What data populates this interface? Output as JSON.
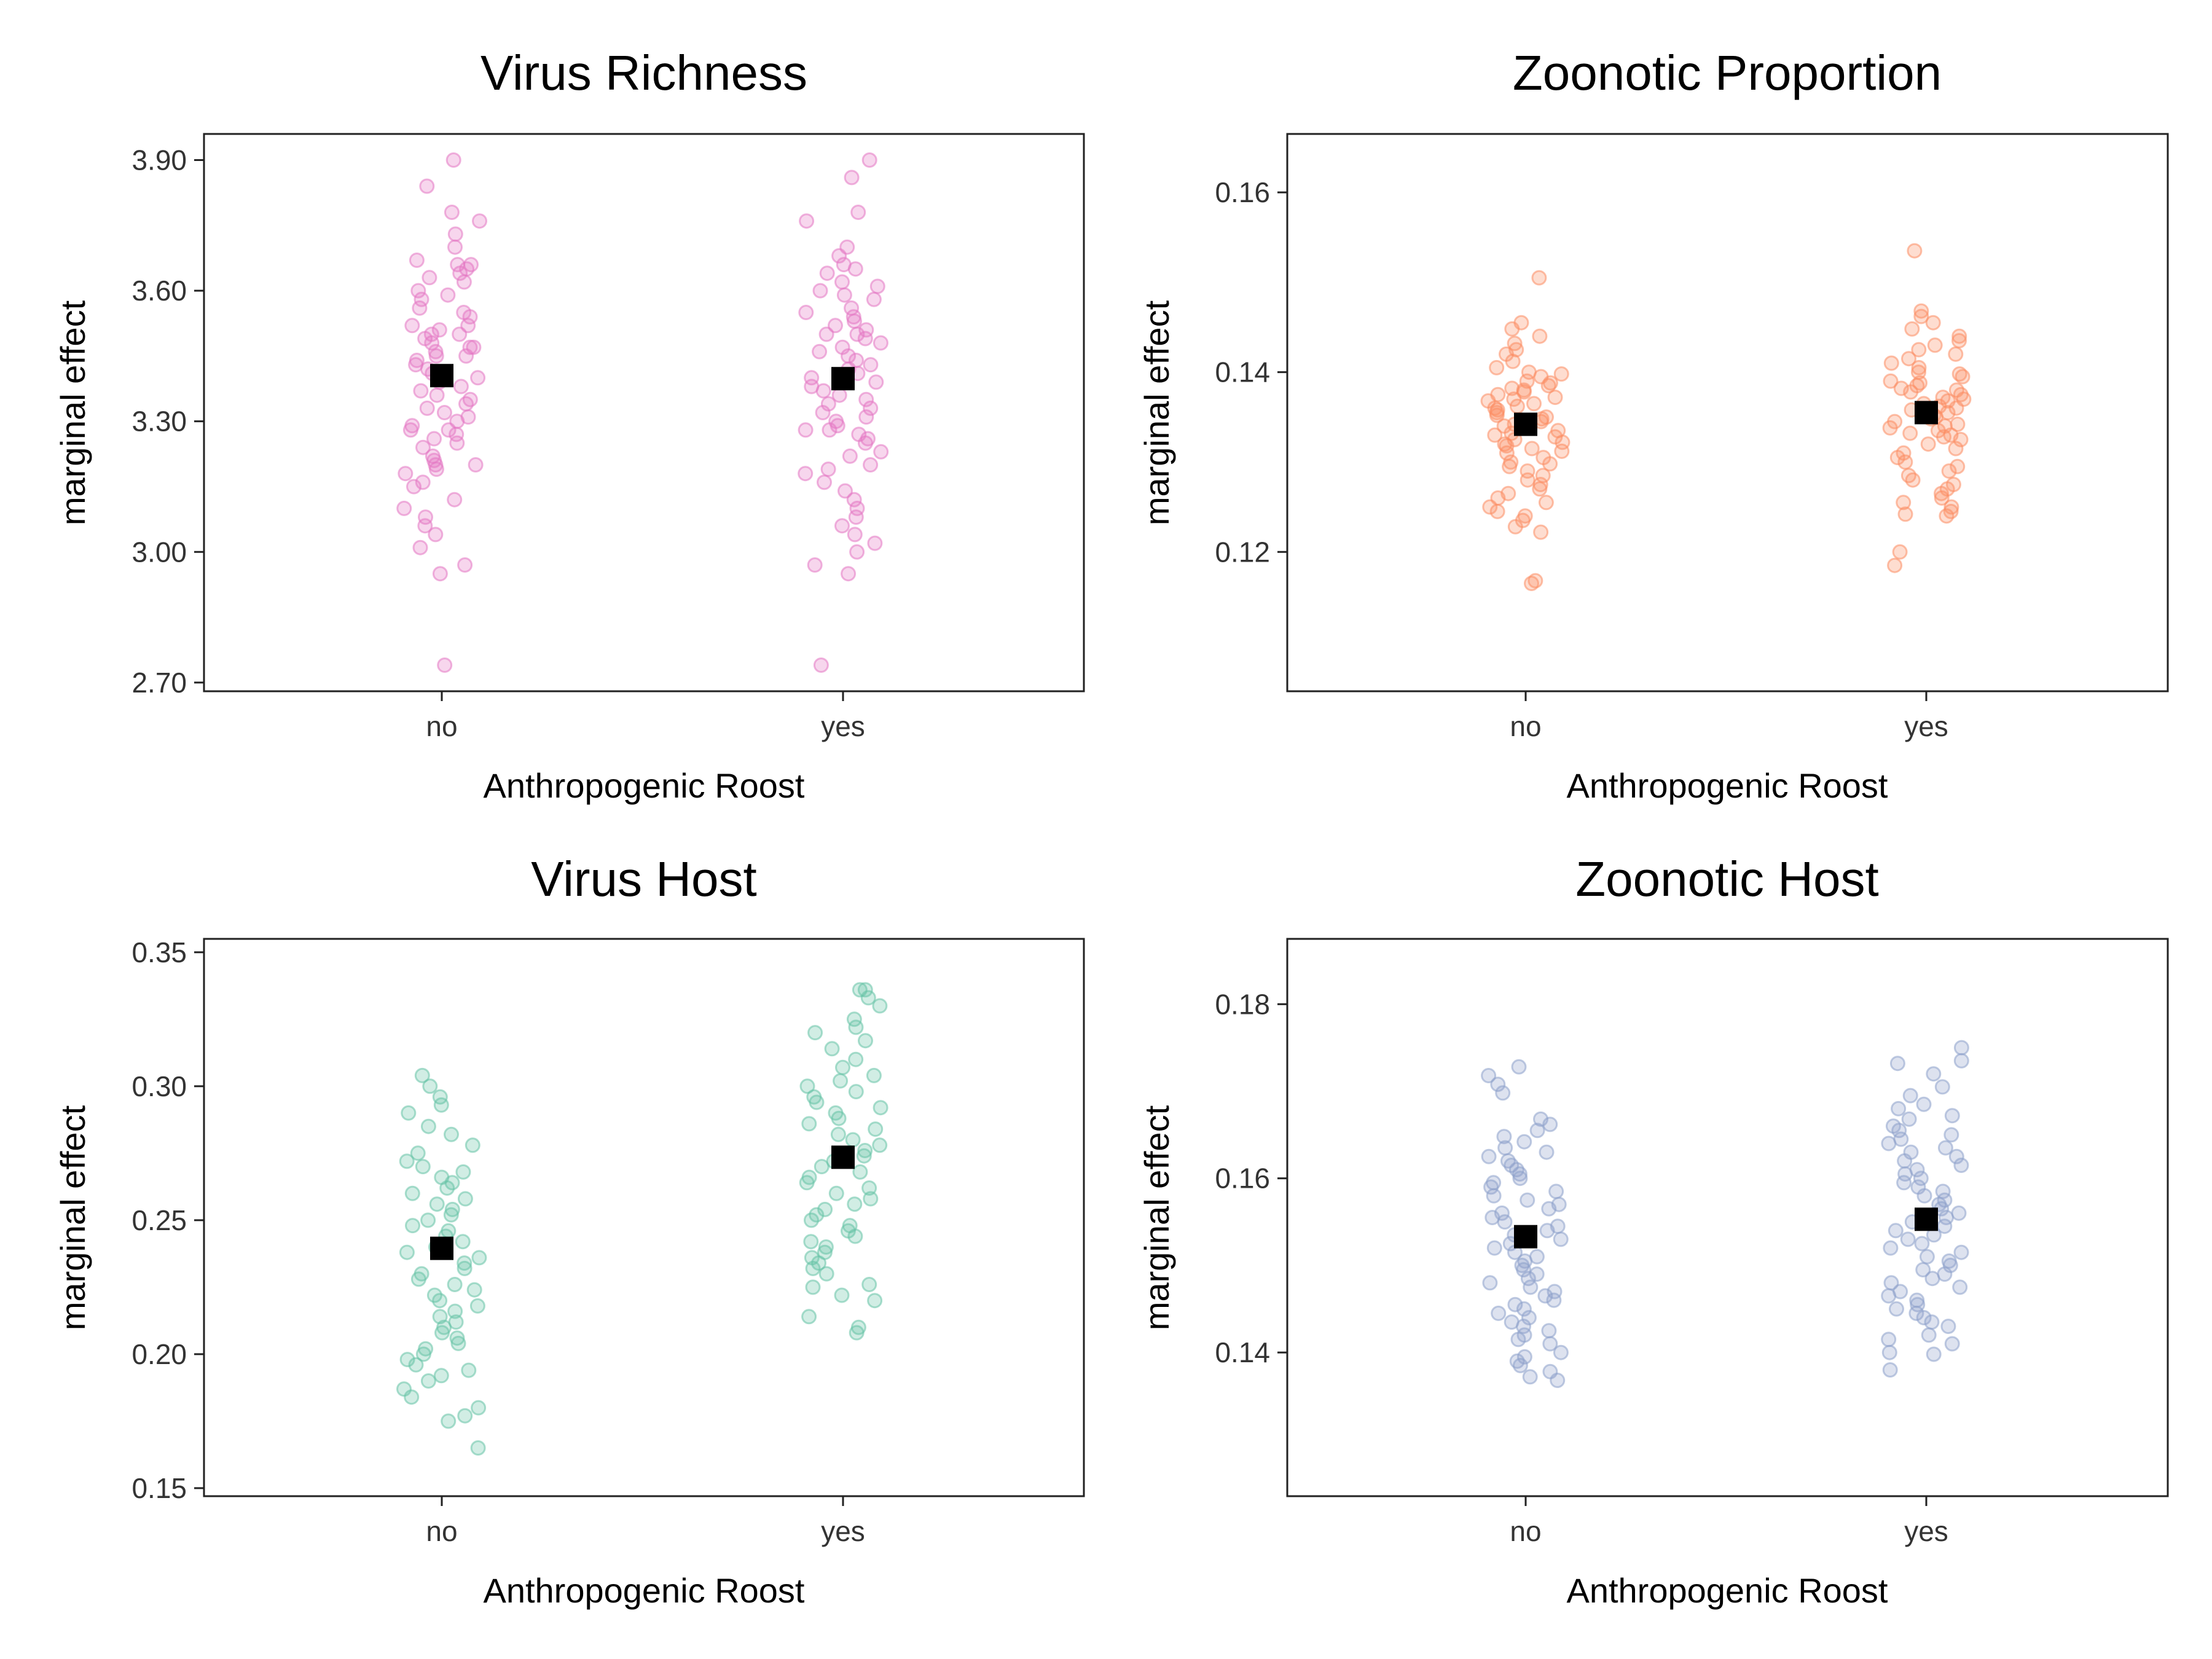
{
  "chart_data": [
    {
      "type": "scatter",
      "title": "Virus Richness",
      "xlabel": "Anthropogenic Roost",
      "ylabel": "marginal effect",
      "categories": [
        "no",
        "yes"
      ],
      "yticks": [
        "2.70",
        "3.00",
        "3.30",
        "3.60",
        "3.90"
      ],
      "ylim": [
        2.68,
        3.96
      ],
      "point_color": "#e377c2",
      "mean_color": "#000000",
      "means": [
        3.405,
        3.398
      ],
      "series": [
        {
          "category": "no",
          "values": [
            3.9,
            3.84,
            3.78,
            3.76,
            3.73,
            3.7,
            3.67,
            3.66,
            3.66,
            3.65,
            3.64,
            3.63,
            3.62,
            3.6,
            3.59,
            3.58,
            3.56,
            3.55,
            3.54,
            3.52,
            3.52,
            3.51,
            3.5,
            3.5,
            3.49,
            3.48,
            3.47,
            3.47,
            3.46,
            3.45,
            3.45,
            3.44,
            3.43,
            3.42,
            3.41,
            3.4,
            3.4,
            3.39,
            3.38,
            3.37,
            3.36,
            3.35,
            3.34,
            3.33,
            3.32,
            3.31,
            3.3,
            3.29,
            3.28,
            3.28,
            3.27,
            3.26,
            3.25,
            3.24,
            3.22,
            3.21,
            3.2,
            3.2,
            3.19,
            3.18,
            3.16,
            3.15,
            3.12,
            3.1,
            3.08,
            3.06,
            3.04,
            3.01,
            2.97,
            2.95,
            2.74
          ]
        },
        {
          "category": "yes",
          "values": [
            3.9,
            3.86,
            3.78,
            3.76,
            3.7,
            3.68,
            3.66,
            3.65,
            3.64,
            3.62,
            3.61,
            3.6,
            3.59,
            3.58,
            3.56,
            3.55,
            3.54,
            3.53,
            3.52,
            3.51,
            3.5,
            3.5,
            3.49,
            3.48,
            3.47,
            3.46,
            3.45,
            3.44,
            3.43,
            3.42,
            3.41,
            3.4,
            3.39,
            3.38,
            3.37,
            3.36,
            3.35,
            3.34,
            3.33,
            3.32,
            3.31,
            3.3,
            3.29,
            3.28,
            3.28,
            3.27,
            3.26,
            3.25,
            3.23,
            3.22,
            3.2,
            3.19,
            3.18,
            3.16,
            3.14,
            3.12,
            3.1,
            3.08,
            3.06,
            3.04,
            3.02,
            3.0,
            2.97,
            2.95,
            2.74
          ]
        }
      ]
    },
    {
      "type": "scatter",
      "title": "Zoonotic Proportion",
      "xlabel": "Anthropogenic Roost",
      "ylabel": "marginal effect",
      "categories": [
        "no",
        "yes"
      ],
      "yticks": [
        "0.12",
        "0.14",
        "0.16"
      ],
      "ylim": [
        0.1045,
        0.1665
      ],
      "point_color": "#fc8d62",
      "mean_color": "#000000",
      "means": [
        0.1342,
        0.1355
      ],
      "series": [
        {
          "category": "no",
          "values": [
            0.1505,
            0.1455,
            0.1448,
            0.144,
            0.1432,
            0.1425,
            0.142,
            0.1412,
            0.1405,
            0.14,
            0.1398,
            0.1395,
            0.139,
            0.1388,
            0.1385,
            0.1382,
            0.138,
            0.1378,
            0.1375,
            0.1372,
            0.137,
            0.1368,
            0.1365,
            0.1362,
            0.136,
            0.1358,
            0.1355,
            0.1352,
            0.135,
            0.1348,
            0.1345,
            0.1342,
            0.134,
            0.1338,
            0.1335,
            0.1332,
            0.133,
            0.1328,
            0.1325,
            0.1322,
            0.132,
            0.1318,
            0.1315,
            0.1312,
            0.131,
            0.1305,
            0.13,
            0.1298,
            0.1295,
            0.129,
            0.1285,
            0.128,
            0.1275,
            0.127,
            0.1265,
            0.126,
            0.1255,
            0.125,
            0.1245,
            0.124,
            0.1235,
            0.1228,
            0.1222,
            0.1168,
            0.1165
          ]
        },
        {
          "category": "yes",
          "values": [
            0.1535,
            0.1468,
            0.1462,
            0.1455,
            0.1448,
            0.144,
            0.1435,
            0.143,
            0.1425,
            0.142,
            0.1415,
            0.141,
            0.1405,
            0.14,
            0.1398,
            0.1395,
            0.139,
            0.1388,
            0.1385,
            0.1382,
            0.138,
            0.1378,
            0.1375,
            0.1372,
            0.137,
            0.1368,
            0.1365,
            0.1362,
            0.136,
            0.1358,
            0.1355,
            0.1352,
            0.135,
            0.1348,
            0.1345,
            0.1342,
            0.134,
            0.1338,
            0.1335,
            0.1332,
            0.133,
            0.1328,
            0.1325,
            0.132,
            0.1315,
            0.131,
            0.1305,
            0.13,
            0.1295,
            0.129,
            0.1285,
            0.128,
            0.1275,
            0.127,
            0.1265,
            0.126,
            0.1255,
            0.125,
            0.1245,
            0.124,
            0.1242,
            0.12,
            0.1185
          ]
        }
      ]
    },
    {
      "type": "scatter",
      "title": "Virus Host",
      "xlabel": "Anthropogenic Roost",
      "ylabel": "marginal effect",
      "categories": [
        "no",
        "yes"
      ],
      "yticks": [
        "0.15",
        "0.20",
        "0.25",
        "0.30",
        "0.35"
      ],
      "ylim": [
        0.147,
        0.355
      ],
      "point_color": "#66c2a5",
      "mean_color": "#000000",
      "means": [
        0.2395,
        0.2735
      ],
      "series": [
        {
          "category": "no",
          "values": [
            0.304,
            0.3,
            0.296,
            0.293,
            0.29,
            0.285,
            0.282,
            0.278,
            0.275,
            0.272,
            0.27,
            0.268,
            0.266,
            0.264,
            0.262,
            0.26,
            0.258,
            0.256,
            0.254,
            0.252,
            0.25,
            0.248,
            0.246,
            0.244,
            0.242,
            0.24,
            0.238,
            0.236,
            0.234,
            0.232,
            0.23,
            0.228,
            0.226,
            0.224,
            0.222,
            0.22,
            0.218,
            0.216,
            0.214,
            0.212,
            0.21,
            0.208,
            0.206,
            0.204,
            0.202,
            0.2,
            0.198,
            0.196,
            0.194,
            0.192,
            0.19,
            0.187,
            0.184,
            0.18,
            0.177,
            0.175,
            0.165
          ]
        },
        {
          "category": "yes",
          "values": [
            0.336,
            0.336,
            0.333,
            0.33,
            0.325,
            0.322,
            0.32,
            0.317,
            0.314,
            0.31,
            0.307,
            0.304,
            0.302,
            0.3,
            0.298,
            0.296,
            0.294,
            0.292,
            0.29,
            0.288,
            0.286,
            0.284,
            0.282,
            0.28,
            0.278,
            0.276,
            0.274,
            0.272,
            0.27,
            0.268,
            0.266,
            0.264,
            0.262,
            0.26,
            0.258,
            0.256,
            0.254,
            0.252,
            0.25,
            0.248,
            0.246,
            0.244,
            0.242,
            0.24,
            0.238,
            0.236,
            0.234,
            0.232,
            0.23,
            0.226,
            0.225,
            0.222,
            0.22,
            0.214,
            0.21,
            0.208
          ]
        }
      ]
    },
    {
      "type": "scatter",
      "title": "Zoonotic Host",
      "xlabel": "Anthropogenic Roost",
      "ylabel": "marginal effect",
      "categories": [
        "no",
        "yes"
      ],
      "yticks": [
        "0.14",
        "0.16",
        "0.18"
      ],
      "ylim": [
        0.1235,
        0.1875
      ],
      "point_color": "#8da0cb",
      "mean_color": "#000000",
      "means": [
        0.1533,
        0.1553
      ],
      "series": [
        {
          "category": "no",
          "values": [
            0.1728,
            0.1718,
            0.1708,
            0.1698,
            0.1668,
            0.1662,
            0.1655,
            0.1648,
            0.1642,
            0.1635,
            0.163,
            0.1625,
            0.162,
            0.1615,
            0.161,
            0.1605,
            0.16,
            0.1595,
            0.159,
            0.1585,
            0.158,
            0.1575,
            0.157,
            0.1565,
            0.156,
            0.1555,
            0.155,
            0.1545,
            0.154,
            0.1535,
            0.153,
            0.1525,
            0.152,
            0.1515,
            0.151,
            0.1505,
            0.15,
            0.1495,
            0.149,
            0.1485,
            0.148,
            0.1475,
            0.147,
            0.1465,
            0.146,
            0.1455,
            0.145,
            0.1445,
            0.144,
            0.1435,
            0.143,
            0.1425,
            0.142,
            0.1415,
            0.141,
            0.14,
            0.1395,
            0.139,
            0.1385,
            0.1378,
            0.1372,
            0.1368
          ]
        },
        {
          "category": "yes",
          "values": [
            0.175,
            0.1735,
            0.1732,
            0.172,
            0.1705,
            0.1695,
            0.1685,
            0.168,
            0.1672,
            0.1668,
            0.166,
            0.1655,
            0.165,
            0.1645,
            0.164,
            0.1635,
            0.163,
            0.1625,
            0.162,
            0.1615,
            0.161,
            0.1605,
            0.16,
            0.1595,
            0.159,
            0.1585,
            0.158,
            0.1575,
            0.157,
            0.1565,
            0.156,
            0.1555,
            0.155,
            0.1545,
            0.154,
            0.1535,
            0.153,
            0.1525,
            0.152,
            0.1515,
            0.151,
            0.1505,
            0.15,
            0.1495,
            0.149,
            0.1485,
            0.148,
            0.1475,
            0.147,
            0.1465,
            0.146,
            0.1455,
            0.145,
            0.1445,
            0.144,
            0.1435,
            0.143,
            0.142,
            0.1415,
            0.141,
            0.14,
            0.1398,
            0.138
          ]
        }
      ]
    }
  ]
}
